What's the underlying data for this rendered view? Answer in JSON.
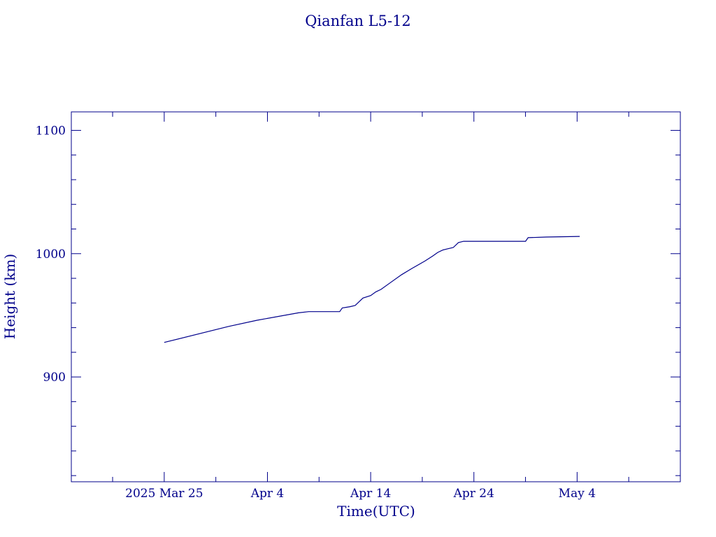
{
  "chart_data": {
    "type": "line",
    "title": "Qianfan L5-12",
    "xlabel": "Time(UTC)",
    "ylabel": "Height (km)",
    "color": "#00008b",
    "x_ticks": [
      {
        "date": "2025-03-25",
        "label": "2025 Mar 25"
      },
      {
        "date": "2025-04-04",
        "label": "Apr  4"
      },
      {
        "date": "2025-04-14",
        "label": "Apr 14"
      },
      {
        "date": "2025-04-24",
        "label": "Apr 24"
      },
      {
        "date": "2025-05-04",
        "label": "May  4"
      }
    ],
    "x_minor_ticks": [
      "2025-03-20",
      "2025-03-30",
      "2025-04-09",
      "2025-04-19",
      "2025-04-29",
      "2025-05-09"
    ],
    "xlim": [
      "2025-03-16",
      "2025-05-14"
    ],
    "y_ticks": [
      900,
      1000,
      1100
    ],
    "ylim": [
      815,
      1115
    ],
    "grid": false,
    "series": [
      {
        "x": [
          "2025-03-25",
          "2025-03-31 06:00",
          "2025-04-03",
          "2025-04-07",
          "2025-04-08",
          "2025-04-11",
          "2025-04-11 06:00",
          "2025-04-12",
          "2025-04-12 12:00",
          "2025-04-13 06:00",
          "2025-04-14",
          "2025-04-14 12:00",
          "2025-04-15",
          "2025-04-16",
          "2025-04-17",
          "2025-04-18",
          "2025-04-19 06:00",
          "2025-04-20",
          "2025-04-20 12:00",
          "2025-04-21",
          "2025-04-21 12:00",
          "2025-04-22",
          "2025-04-22 12:00",
          "2025-04-23",
          "2025-04-29",
          "2025-04-29 06:00",
          "2025-05-01",
          "2025-05-04 06:00"
        ],
        "y": [
          928,
          941,
          946,
          952,
          953,
          953,
          956,
          957,
          958,
          964,
          966,
          969,
          971,
          977,
          983,
          988,
          994,
          998,
          1001,
          1003,
          1004,
          1005,
          1009,
          1010,
          1010,
          1013,
          1013.5,
          1014
        ]
      }
    ]
  }
}
